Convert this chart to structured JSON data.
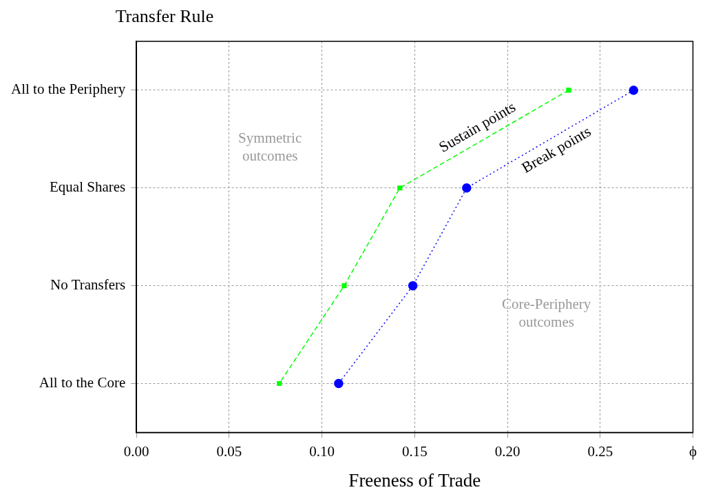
{
  "chart_data": {
    "type": "line",
    "orientation": "horizontal",
    "ylabel": "Transfer Rule",
    "xlabel": "Freeness of Trade",
    "categories": [
      "All to the Periphery",
      "Equal Shares",
      "No Transfers",
      "All to the Core"
    ],
    "series": [
      {
        "name": "Sustain points",
        "color": "#00ff00",
        "values": [
          0.233,
          0.142,
          0.112,
          0.077
        ],
        "marker": "square",
        "line_style": "dashed"
      },
      {
        "name": "Break points",
        "color": "#0000ff",
        "values": [
          0.268,
          0.178,
          0.149,
          0.109
        ],
        "marker": "circle",
        "line_style": "dotted"
      }
    ],
    "xlim": [
      0,
      0.3
    ],
    "xticks": [
      {
        "value": 0,
        "label": "0.00"
      },
      0.05,
      {
        "value": 0.1,
        "label": "0.10"
      },
      0.15,
      {
        "value": 0.2,
        "label": "0.20"
      },
      0.25,
      {
        "value": 0.3,
        "label": "ϕ"
      }
    ],
    "grid": true,
    "legend": false,
    "annotations": [
      "Symmetric\noutcomes",
      "Core-Periphery\noutcomes"
    ]
  }
}
